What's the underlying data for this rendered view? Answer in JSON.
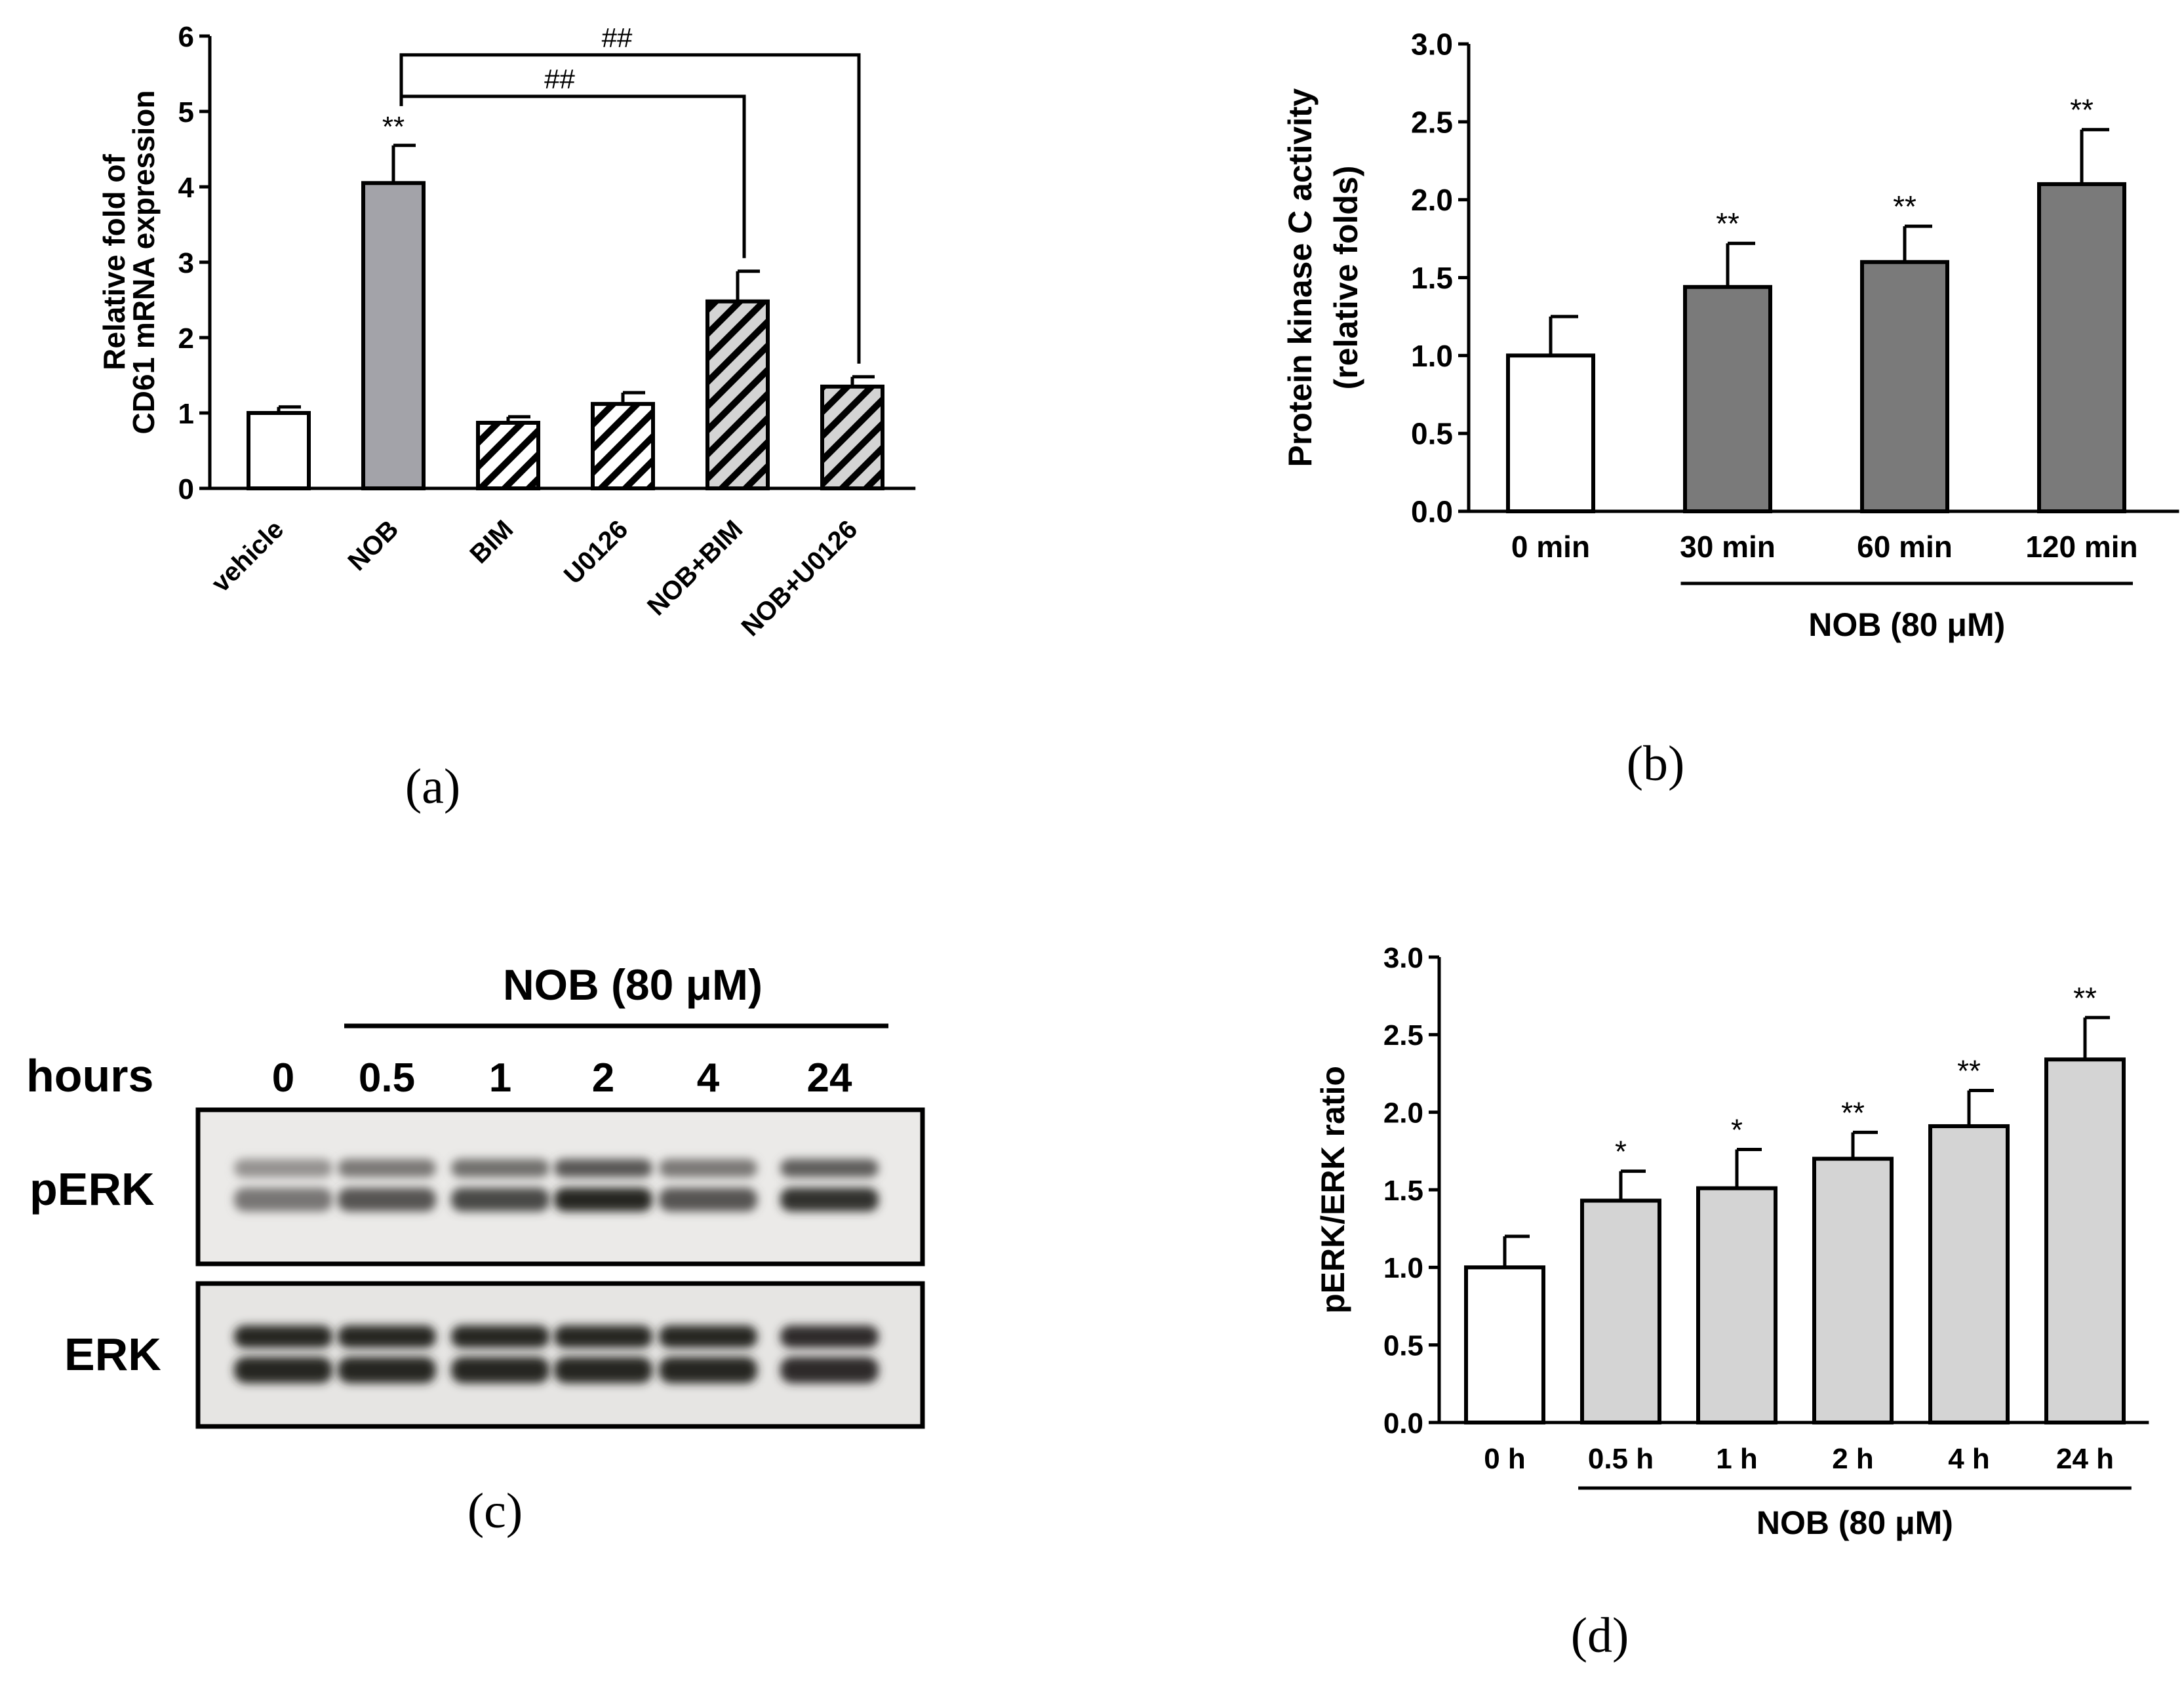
{
  "chart_data": [
    {
      "id": "a",
      "type": "bar",
      "caption": "(a)",
      "ylabel_lines": [
        "Relative fold of",
        "CD61 mRNA expression"
      ],
      "ylim": [
        0,
        6
      ],
      "yticks": [
        "0",
        "1",
        "2",
        "3",
        "4",
        "5",
        "6"
      ],
      "categories": [
        "vehicle",
        "NOB",
        "BIM",
        "U0126",
        "NOB+BIM",
        "NOB+U0126"
      ],
      "values": [
        1.0,
        4.05,
        0.87,
        1.12,
        2.48,
        1.35
      ],
      "errors": [
        0.08,
        0.5,
        0.08,
        0.15,
        0.4,
        0.13
      ],
      "fills": [
        "#ffffff",
        "#a3a3a9",
        "#ffffff",
        "#ffffff",
        "#d4d4d4",
        "#d4d4d4"
      ],
      "hatched": [
        false,
        false,
        true,
        true,
        true,
        true
      ],
      "marks": [
        "",
        "**",
        "",
        "",
        "",
        ""
      ],
      "comparisons": [
        {
          "from": "NOB",
          "to": "NOB+BIM",
          "y": 5.2,
          "label": "##"
        },
        {
          "from": "NOB",
          "to": "NOB+U0126",
          "y": 5.75,
          "label": "##"
        }
      ]
    },
    {
      "id": "b",
      "type": "bar",
      "caption": "(b)",
      "ylabel_lines": [
        "Protein kinase C activity",
        "(relative folds)"
      ],
      "ylim": [
        0,
        3
      ],
      "yticks": [
        "0.0",
        "0.5",
        "1.0",
        "1.5",
        "2.0",
        "2.5",
        "3.0"
      ],
      "categories": [
        "0 min",
        "30 min",
        "60 min",
        "120 min"
      ],
      "values": [
        1.0,
        1.44,
        1.6,
        2.1
      ],
      "errors": [
        0.25,
        0.28,
        0.23,
        0.35
      ],
      "fills": [
        "#ffffff",
        "#7a7a7a",
        "#7a7a7a",
        "#7a7a7a"
      ],
      "marks": [
        "",
        "**",
        "**",
        "**"
      ],
      "group_label": "NOB (80 μM)",
      "group_from": 1,
      "group_to": 3
    },
    {
      "id": "d",
      "type": "bar",
      "caption": "(d)",
      "ylabel_lines": [
        "pERK/ERK ratio"
      ],
      "ylim": [
        0,
        3
      ],
      "yticks": [
        "0.0",
        "0.5",
        "1.0",
        "1.5",
        "2.0",
        "2.5",
        "3.0"
      ],
      "categories": [
        "0 h",
        "0.5 h",
        "1 h",
        "2 h",
        "4 h",
        "24 h"
      ],
      "values": [
        1.0,
        1.43,
        1.51,
        1.7,
        1.91,
        2.34
      ],
      "errors": [
        0.2,
        0.19,
        0.25,
        0.17,
        0.23,
        0.27
      ],
      "fills": [
        "#ffffff",
        "#d4d4d4",
        "#d4d4d4",
        "#d4d4d4",
        "#d4d4d4",
        "#d4d4d4"
      ],
      "marks": [
        "",
        "*",
        "*",
        "**",
        "**",
        "**"
      ],
      "group_label": "NOB (80 μM)",
      "group_from": 1,
      "group_to": 5
    }
  ],
  "western_blot": {
    "caption": "(c)",
    "treatment_label": "NOB (80 μM)",
    "row_label": "hours",
    "lanes": [
      "0",
      "0.5",
      "1",
      "2",
      "4",
      "24"
    ],
    "bands": [
      "pERK",
      "ERK"
    ],
    "pERK_strength": [
      0.55,
      0.72,
      0.78,
      0.95,
      0.72,
      0.9
    ],
    "ERK_strength": [
      0.95,
      0.95,
      0.95,
      0.95,
      0.95,
      0.92
    ]
  }
}
